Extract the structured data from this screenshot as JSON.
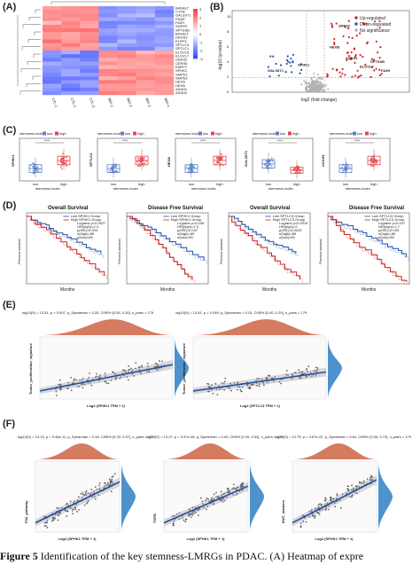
{
  "panels": {
    "A": "(A)",
    "B": "(B)",
    "C": "(C)",
    "D": "(D)",
    "E": "(E)",
    "F": "(F)"
  },
  "panel_a": {
    "genes": [
      "B4GALT",
      "CYTB",
      "GAL3ST1",
      "PSAP",
      "FA2H",
      "SGPP2",
      "SPTSSB",
      "B4GALT",
      "DEGS2",
      "PLPP3",
      "SPTLC3",
      "SPTLC1",
      "ELOVL5",
      "ELOVL7",
      "CERS2",
      "CERS5",
      "ENPP7",
      "SPHK1",
      "SMPD1",
      "SMPD2",
      "HEXA",
      "HEXB",
      "ASAH1",
      "ASAH2"
    ],
    "samples": [
      "CTL-1",
      "CTL-2",
      "CTL-3",
      "MIX-1",
      "MIX-2",
      "MIX-3",
      "MIX-4"
    ],
    "scale": [
      "3",
      "2",
      "1",
      "0",
      "-1",
      "-2",
      "-3"
    ]
  },
  "panel_b": {
    "legend": [
      "Up-regulated",
      "Down-regulated",
      "No significance"
    ],
    "xlabel": "log2 (fold change)",
    "ylabel": "-log10 (p-value)",
    "ticks_y": [
      "0",
      "2",
      "4",
      "6",
      "8",
      "10"
    ],
    "genes_up": [
      "SPNS2",
      "HEXB",
      "ASAH1",
      "SPTSSB",
      "ELOVL2",
      "FA2H"
    ],
    "genes_down": [
      "GAL3ST1",
      "SPHK1"
    ],
    "colors": {
      "up": "#d62728",
      "down": "#2955a8",
      "ns": "#b0b0b0"
    }
  },
  "panel_c": {
    "legend_title": "stemness index",
    "legend_low": "low",
    "legend_high": "high",
    "sig": "****",
    "xlabel": "stemness index",
    "genes": [
      "SPHK1",
      "SPTLC3",
      "HEXB",
      "GAL3ST1",
      "ASAH1"
    ],
    "x_low": "low",
    "x_high": "high"
  },
  "panel_d": {
    "titles": [
      "Overall Survival",
      "Disease Free Survival",
      "Overall Survival",
      "Disease Free Survival"
    ],
    "xlabel": "Months",
    "ylabel": "Percent survival",
    "legends": [
      [
        "Low SPHK1 Group",
        "High SPHK1 Group",
        "Logrank p=0.0027",
        "HR(high)=2.3",
        "p(HR)=0.003",
        "n(high)=89",
        "n(low)=89"
      ],
      [
        "Low SPHK1 Group",
        "High SPHK1 Group",
        "Logrank p=0.035",
        "HR(high)=1.9",
        "p(HR)=0.037",
        "n(high)=89",
        "n(low)=89"
      ],
      [
        "Low SPTLC3 Group",
        "High SPTLC3 Group",
        "Logrank p=0.0019",
        "HR(high)=2",
        "p(HR)=0.0023",
        "n(high)=89",
        "n(low)=89"
      ],
      [
        "Low SPTLC3 Group",
        "High SPTLC3 Group",
        "Logrank p=0.037",
        "HR(high)=1.7",
        "p(HR)=0.039",
        "n(high)=89",
        "n(low)=89"
      ]
    ]
  },
  "panel_e": {
    "stats": [
      "log10(S) = 13.51, p = 0.007, ρ_Spearman = 0.20, CI95% [0.05, 0.34], n_pairs = 179",
      "log10(S) = 13.81, p = 0.046, ρ_Spearman = 0.15, CI95% [0.00, 0.29], n_pairs = 179"
    ],
    "xlabels": [
      "Log2 (SPHK1 TPM + 1)",
      "Log2 (SPTLC3 TPM + 1)"
    ],
    "ylabel": "Tumor_proliferation_signature"
  },
  "panel_f": {
    "stats": [
      "log10(S) = 13.15, p = 9.46e-11, ρ_Spearman = 0.46, CI95% [0.33, 0.57], n_pairs = 179",
      "log10(S) = 13.27, p = 3.37e-08, ρ_Spearman = 0.40, CI95% [0.26, 0.52], n_pairs = 179",
      "log10(S) = 12.75, p = 4.87e-22, ρ_Spearman = 0.64, CI95% [0.54, 0.72], n_pairs = 179"
    ],
    "ylabels": [
      "P53_pathway",
      "TGFB",
      "EMT_markers"
    ],
    "xlabel": "Log2 (SPHK1 TPM + 1)"
  },
  "caption": {
    "prefix": "Figure 5",
    "text": " Identification of the key stemness-LMRGs in PDAC. (A) Heatmap of expre"
  }
}
